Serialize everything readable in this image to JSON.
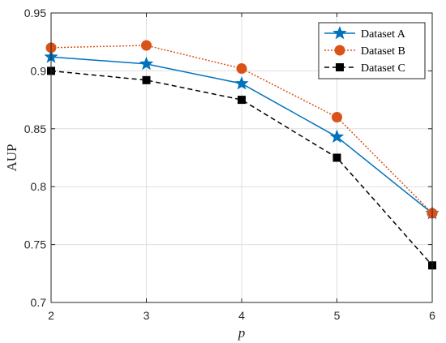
{
  "chart_data": {
    "type": "line",
    "x": [
      2,
      3,
      4,
      5,
      6
    ],
    "xlabel": "p",
    "ylabel": "AUP",
    "xlim": [
      2,
      6
    ],
    "ylim": [
      0.7,
      0.95
    ],
    "xticks": [
      "2",
      "3",
      "4",
      "5",
      "6"
    ],
    "yticks": [
      "0.7",
      "0.75",
      "0.8",
      "0.85",
      "0.9",
      "0.95"
    ],
    "grid": true,
    "legend_position": "top-right",
    "series": [
      {
        "name": "Dataset A",
        "values": [
          0.912,
          0.906,
          0.889,
          0.843,
          0.777
        ],
        "color": "#0072BD",
        "line": "solid",
        "marker": "star"
      },
      {
        "name": "Dataset B",
        "values": [
          0.92,
          0.922,
          0.902,
          0.86,
          0.777
        ],
        "color": "#D95319",
        "line": "dotted",
        "marker": "circle"
      },
      {
        "name": "Dataset C",
        "values": [
          0.9,
          0.892,
          0.875,
          0.825,
          0.732
        ],
        "color": "#000000",
        "line": "dashed",
        "marker": "square"
      }
    ]
  }
}
